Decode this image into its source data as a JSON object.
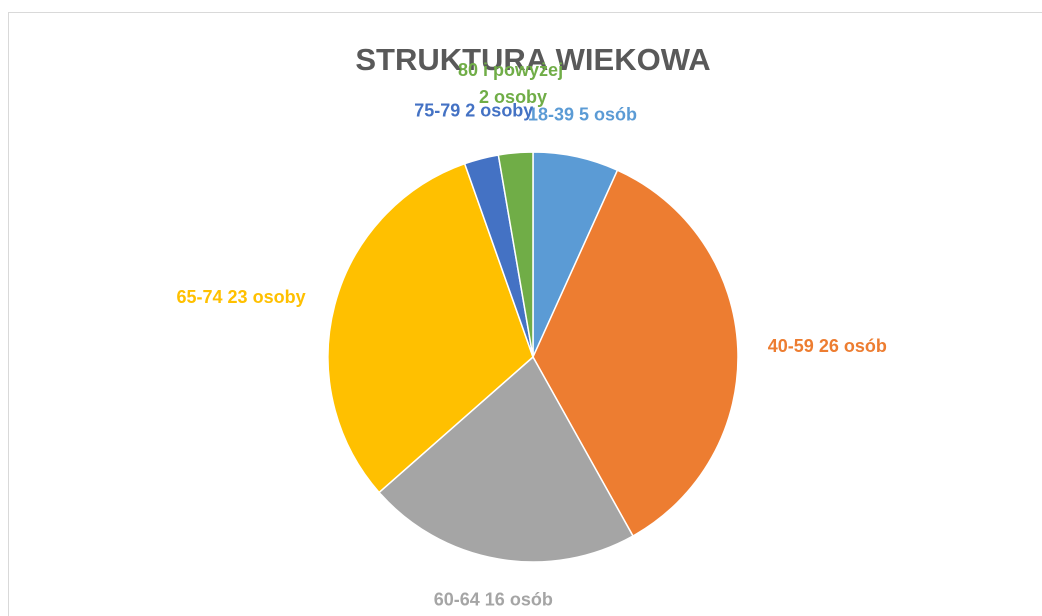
{
  "chart_data": {
    "type": "pie",
    "title": "STRUKTURA WIEKOWA",
    "categories": [
      "18-39",
      "40-59",
      "60-64",
      "65-74",
      "75-79",
      "80 i powyżej"
    ],
    "values": [
      5,
      26,
      16,
      23,
      2,
      2
    ],
    "value_labels": [
      "5 osób",
      "26 osób",
      "16 osób",
      "23 osoby",
      "2 osoby",
      "2 osoby"
    ],
    "colors": [
      "#5b9bd5",
      "#ed7d31",
      "#a5a5a5",
      "#ffc000",
      "#4472c4",
      "#70ad47"
    ]
  }
}
